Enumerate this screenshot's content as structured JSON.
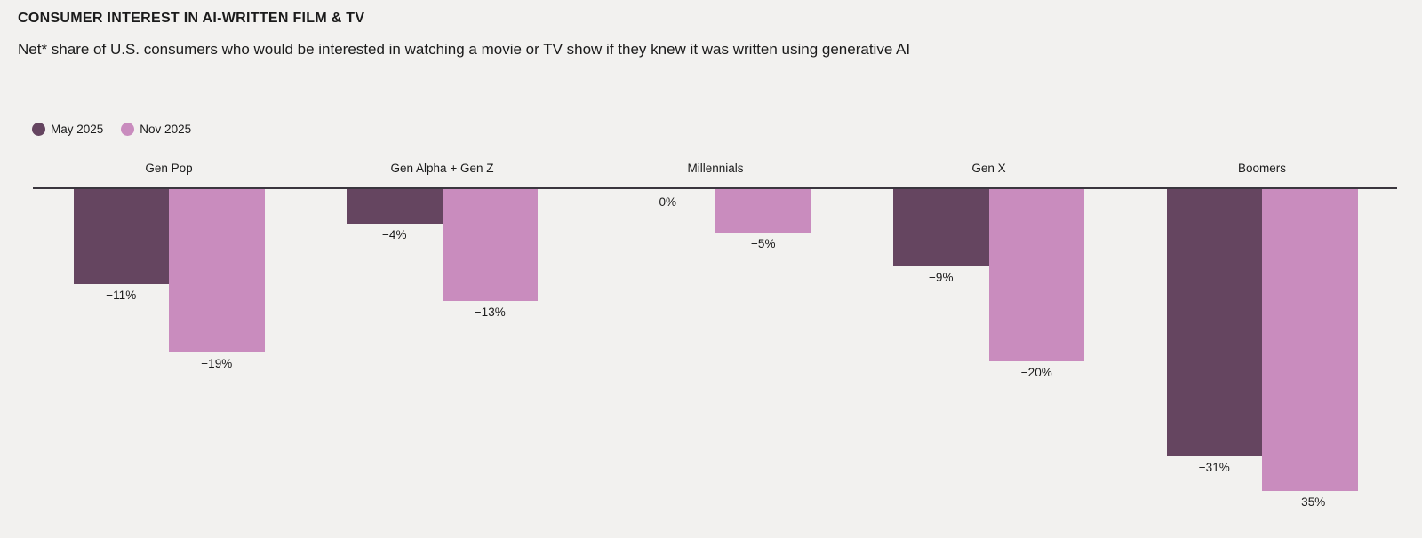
{
  "header": {
    "title": "CONSUMER INTEREST IN AI-WRITTEN FILM & TV",
    "subtitle": "Net* share of U.S. consumers who would be interested in watching a movie or TV show if they knew it was written using generative AI"
  },
  "legend": [
    {
      "label": "May 2025",
      "color": "#654560"
    },
    {
      "label": "Nov 2025",
      "color": "#c98cbe"
    }
  ],
  "chart_data": {
    "type": "bar",
    "title": "CONSUMER INTEREST IN AI-WRITTEN FILM & TV",
    "subtitle": "Net* share of U.S. consumers who would be interested in watching a movie or TV show if they knew it was written using generative AI",
    "categories": [
      "Gen Pop",
      "Gen Alpha + Gen Z",
      "Millennials",
      "Gen X",
      "Boomers"
    ],
    "series": [
      {
        "name": "May 2025",
        "color": "#654560",
        "values": [
          -11,
          -4,
          0,
          -9,
          -31
        ],
        "labels": [
          "−11%",
          "−4%",
          "0%",
          "−9%",
          "−31%"
        ]
      },
      {
        "name": "Nov 2025",
        "color": "#c98cbe",
        "values": [
          -19,
          -13,
          -5,
          -20,
          -35
        ],
        "labels": [
          "−19%",
          "−13%",
          "−5%",
          "−20%",
          "−35%"
        ]
      }
    ],
    "xlabel": "",
    "ylabel": "",
    "value_suffix": "%",
    "ylim": [
      -40,
      0
    ],
    "grid": false,
    "legend_position": "top-left",
    "baseline_value": 0,
    "value_labels_shown": true
  },
  "colors": {
    "background": "#f2f1ef",
    "text": "#1b1b1b",
    "baseline": "#3a363e"
  }
}
